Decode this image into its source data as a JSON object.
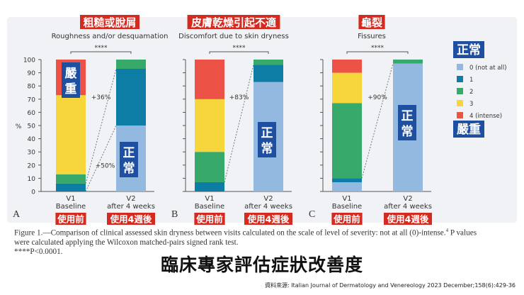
{
  "panels": [
    {
      "letter": "A",
      "zh_title": "粗糙或脫屑",
      "en_title": "Roughness and/or desquamation",
      "signif": "****",
      "pct_upper": "+36%",
      "pct_lower": "+50%"
    },
    {
      "letter": "B",
      "zh_title": "皮膚乾燥引起不適",
      "en_title": "Discomfort due to skin dryness",
      "signif": "****",
      "pct_upper": "+83%",
      "pct_lower": ""
    },
    {
      "letter": "C",
      "zh_title": "龜裂",
      "en_title": "Fissures",
      "signif": "****",
      "pct_upper": "+90%",
      "pct_lower": ""
    }
  ],
  "legend": {
    "top_tag": "正常",
    "bottom_tag": "嚴重",
    "entries": [
      "0 (not at all)",
      "1",
      "2",
      "3",
      "4 (intense)"
    ]
  },
  "tags": {
    "severe": "嚴重",
    "normal": "正常",
    "before": "使用前",
    "after": "使用4週後"
  },
  "caption": {
    "line1": "Figure 1.—Comparison of clinical assessed skin dryness between visits calculated on the scale of level of severity: not at all (0)-intense.",
    "sup": "4",
    "line1_end": " P values",
    "line2": "were calculated applying the Wilcoxon matched-pairs signed rank test.",
    "line3": "****P<0.0001."
  },
  "headline": "臨床專家評估症狀改善度",
  "source": "資料來源: Italian Journal of Dermatology and Venereology 2023 December;158(6):429-36",
  "chart_data": [
    {
      "type": "bar",
      "stacked": true,
      "title": "Roughness and/or desquamation",
      "categories": [
        "V1\nBaseline",
        "V2\nafter 4 weeks"
      ],
      "ylabel": "%",
      "ylim": [
        0,
        100
      ],
      "yticks": [
        0,
        10,
        20,
        30,
        40,
        50,
        60,
        70,
        80,
        90,
        100
      ],
      "series": [
        {
          "name": "0 (not at all)",
          "values": [
            0,
            50
          ]
        },
        {
          "name": "1",
          "values": [
            6,
            43
          ]
        },
        {
          "name": "2",
          "values": [
            7,
            7
          ]
        },
        {
          "name": "3",
          "values": [
            60,
            0
          ]
        },
        {
          "name": "4 (intense)",
          "values": [
            27,
            0
          ]
        }
      ]
    },
    {
      "type": "bar",
      "stacked": true,
      "title": "Discomfort due to skin dryness",
      "categories": [
        "V1\nBaseline",
        "V2\nafter 4 weeks"
      ],
      "ylim": [
        0,
        100
      ],
      "series": [
        {
          "name": "0 (not at all)",
          "values": [
            0,
            83
          ]
        },
        {
          "name": "1",
          "values": [
            7,
            13
          ]
        },
        {
          "name": "2",
          "values": [
            23,
            4
          ]
        },
        {
          "name": "3",
          "values": [
            40,
            0
          ]
        },
        {
          "name": "4 (intense)",
          "values": [
            30,
            0
          ]
        }
      ]
    },
    {
      "type": "bar",
      "stacked": true,
      "title": "Fissures",
      "categories": [
        "V1\nBaseline",
        "V2\nafter 4 weeks"
      ],
      "ylim": [
        0,
        100
      ],
      "series": [
        {
          "name": "0 (not at all)",
          "values": [
            7,
            97
          ]
        },
        {
          "name": "1",
          "values": [
            3,
            0
          ]
        },
        {
          "name": "2",
          "values": [
            57,
            3
          ]
        },
        {
          "name": "3",
          "values": [
            23,
            0
          ]
        },
        {
          "name": "4 (intense)",
          "values": [
            10,
            0
          ]
        }
      ]
    }
  ],
  "colors": {
    "level0": "#93b9e1",
    "level1": "#0e7da5",
    "level2": "#37a96b",
    "level3": "#f6d63b",
    "level4": "#ec5246",
    "zh_tag_red": "#d42a20",
    "zh_tag_blue": "#1f4fa0",
    "axis": "#555555"
  }
}
